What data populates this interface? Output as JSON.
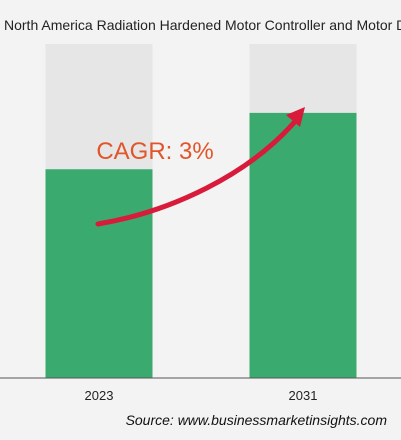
{
  "chart_data": {
    "type": "bar",
    "title": "North America Radiation Hardened Motor Controller and Motor Drive Market",
    "categories": [
      "2023",
      "2031"
    ],
    "series": [
      {
        "values": [
          1.0,
          1.27
        ]
      }
    ],
    "ylim": [
      0,
      1.6
    ],
    "annotation": "CAGR: 3%",
    "grid": false,
    "colors": {
      "bar": "#3aaa6e",
      "track": "#e6e6e6",
      "arrow": "#d81b3b",
      "annotation": "#e2552a",
      "axis": "#555555"
    }
  },
  "source": "Source: www.businessmarketinsights.com"
}
